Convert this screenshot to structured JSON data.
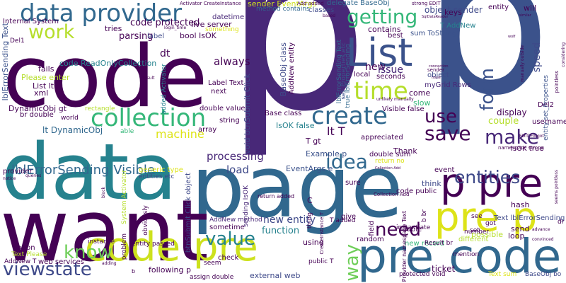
{
  "words": [
    {
      "text": "p",
      "color": "#482878"
    },
    {
      "text": "p",
      "color": "#3b528b"
    },
    {
      "text": "code",
      "color": "#440154"
    },
    {
      "text": "page",
      "color": "#31688e"
    },
    {
      "text": "data",
      "color": "#26828e"
    },
    {
      "text": "want",
      "color": "#440154"
    },
    {
      "text": "List",
      "color": "#3b528b"
    },
    {
      "text": "pre code",
      "color": "#31688e"
    },
    {
      "text": "code pre",
      "color": "#cde11d"
    },
    {
      "text": "p pre",
      "color": "#440154"
    },
    {
      "text": "pre p",
      "color": "#dde318"
    },
    {
      "text": "data provider",
      "color": "#31688e"
    },
    {
      "text": "collection",
      "color": "#35b779"
    },
    {
      "text": "create",
      "color": "#31688e"
    },
    {
      "text": "entities",
      "color": "#3e4989"
    },
    {
      "text": "work",
      "color": "#b5de2b"
    },
    {
      "text": "time",
      "color": "#b5de2b"
    },
    {
      "text": "getting",
      "color": "#35b779"
    },
    {
      "text": "make",
      "color": "#482878"
    },
    {
      "text": "save",
      "color": "#440154"
    },
    {
      "text": "idea",
      "color": "#31688e"
    },
    {
      "text": "use",
      "color": "#440154"
    },
    {
      "text": "form",
      "color": "#3b528b"
    },
    {
      "text": "need",
      "color": "#440154"
    },
    {
      "text": "know",
      "color": "#6ece58"
    },
    {
      "text": "value",
      "color": "#26828e"
    },
    {
      "text": "viewstate",
      "color": "#3e4989"
    },
    {
      "text": "way",
      "color": "#6ece58"
    },
    {
      "text": "lblErrorSending Visible",
      "color": "#31688e"
    },
    {
      "text": "lblErrorSending Text",
      "color": "#3b528b"
    },
    {
      "text": "machine",
      "color": "#dde318"
    },
    {
      "text": "processing",
      "color": "#482878"
    },
    {
      "text": "load",
      "color": "#3e4989"
    },
    {
      "text": "new entity",
      "color": "#3e4989"
    },
    {
      "text": "function",
      "color": "#26828e"
    },
    {
      "text": "lt T",
      "color": "#440154"
    },
    {
      "text": "lt DynamicObj",
      "color": "#31688e"
    },
    {
      "text": "DynamicObj gt",
      "color": "#440154"
    },
    {
      "text": "always",
      "color": "#440154"
    },
    {
      "text": "code ReadOnlyCollection",
      "color": "#26828e"
    },
    {
      "text": "code protected",
      "color": "#440154"
    },
    {
      "text": "parsing",
      "color": "#440154"
    },
    {
      "text": "tries",
      "color": "#440154"
    },
    {
      "text": "bool IsOK",
      "color": "#440154"
    },
    {
      "text": "label",
      "color": "#3e4989"
    },
    {
      "text": "live server",
      "color": "#440154"
    },
    {
      "text": "datetime",
      "color": "#482878"
    },
    {
      "text": "method contains",
      "color": "#31688e"
    },
    {
      "text": "sender EventArgs",
      "color": "#cde11d"
    },
    {
      "text": "classes",
      "color": "#3e4989"
    },
    {
      "text": "delegate BaseObj",
      "color": "#31688e"
    },
    {
      "text": "object sender",
      "color": "#3e4989"
    },
    {
      "text": "entity",
      "color": "#440154"
    },
    {
      "text": "keys",
      "color": "#440154"
    },
    {
      "text": "will",
      "color": "#440154"
    },
    {
      "text": "T AddNew",
      "color": "#26828e"
    },
    {
      "text": "sum ToString",
      "color": "#3b528b"
    },
    {
      "text": "contains",
      "color": "#440154"
    },
    {
      "text": "best",
      "color": "#440154"
    },
    {
      "text": "BaseObj class",
      "color": "#3e4989"
    },
    {
      "text": "AddNew entity",
      "color": "#440154"
    },
    {
      "text": "new",
      "color": "#440154"
    },
    {
      "text": "issue",
      "color": "#482878"
    },
    {
      "text": "local",
      "color": "#440154"
    },
    {
      "text": "seconds",
      "color": "#440154"
    },
    {
      "text": "myGrid Rows",
      "color": "#482878"
    },
    {
      "text": "come",
      "color": "#440154"
    },
    {
      "text": "slow",
      "color": "#35b779"
    },
    {
      "text": "Visible false",
      "color": "#440154"
    },
    {
      "text": "speed",
      "color": "#3e4989"
    },
    {
      "text": "display",
      "color": "#440154"
    },
    {
      "text": "Del2",
      "color": "#440154"
    },
    {
      "text": "couple",
      "color": "#b5de2b"
    },
    {
      "text": "username",
      "color": "#440154"
    },
    {
      "text": "IsOK true",
      "color": "#440154"
    },
    {
      "text": "event",
      "color": "#440154"
    },
    {
      "text": "think",
      "color": "#3e4989"
    },
    {
      "text": "Thank",
      "color": "#440154"
    },
    {
      "text": "appreciated",
      "color": "#440154"
    },
    {
      "text": "double sum",
      "color": "#440154"
    },
    {
      "text": "Example p",
      "color": "#3b528b"
    },
    {
      "text": "T gt",
      "color": "#440154"
    },
    {
      "text": "EventArgs e",
      "color": "#3b528b"
    },
    {
      "text": "IsOK false",
      "color": "#26828e"
    },
    {
      "text": "Base class",
      "color": "#440154"
    },
    {
      "text": "Internal System",
      "color": "#440154"
    },
    {
      "text": "Please enter",
      "color": "#b5de2b"
    },
    {
      "text": "fails",
      "color": "#440154"
    },
    {
      "text": "List lt",
      "color": "#440154"
    },
    {
      "text": "xml",
      "color": "#440154"
    },
    {
      "text": "br double",
      "color": "#440154"
    },
    {
      "text": "world",
      "color": "#440154"
    },
    {
      "text": "rectangle",
      "color": "#b5de2b"
    },
    {
      "text": "able",
      "color": "#35b779"
    },
    {
      "text": "generic type",
      "color": "#dde318"
    },
    {
      "text": "entities etc",
      "color": "#3e4989"
    },
    {
      "text": "Label Text",
      "color": "#440154"
    },
    {
      "text": "next",
      "color": "#440154"
    },
    {
      "text": "double value",
      "color": "#440154"
    },
    {
      "text": "array",
      "color": "#440154"
    },
    {
      "text": "string",
      "color": "#440154"
    },
    {
      "text": "dt",
      "color": "#440154"
    },
    {
      "text": "added Activator",
      "color": "#26828e"
    },
    {
      "text": "something",
      "color": "#dde318"
    },
    {
      "text": "void btnSubmit Click",
      "color": "#3e4989"
    },
    {
      "text": "btnSubmit Click object",
      "color": "#3e4989"
    },
    {
      "text": "sending IsOK",
      "color": "#482878"
    },
    {
      "text": "AddNew method",
      "color": "#482878"
    },
    {
      "text": "sometime",
      "color": "#440154"
    },
    {
      "text": "entity passed",
      "color": "#440154"
    },
    {
      "text": "obviously",
      "color": "#440154"
    },
    {
      "text": "following p",
      "color": "#440154"
    },
    {
      "text": "assign double",
      "color": "#440154"
    },
    {
      "text": "external web",
      "color": "#3e4989"
    },
    {
      "text": "check",
      "color": "#440154"
    },
    {
      "text": "seem",
      "color": "#440154"
    },
    {
      "text": "using",
      "color": "#440154"
    },
    {
      "text": "random",
      "color": "#440154"
    },
    {
      "text": "give",
      "color": "#440154"
    },
    {
      "text": "public T",
      "color": "#440154"
    },
    {
      "text": "protected void",
      "color": "#440154"
    },
    {
      "text": "web services",
      "color": "#440154"
    },
    {
      "text": "Text Please",
      "color": "#b5de2b"
    },
    {
      "text": "option",
      "color": "#440154"
    },
    {
      "text": "AddNew T",
      "color": "#440154"
    },
    {
      "text": "provider",
      "color": "#440154"
    },
    {
      "text": "problem",
      "color": "#440154"
    },
    {
      "text": "instance",
      "color": "#440154"
    },
    {
      "text": "return added",
      "color": "#440154"
    },
    {
      "text": "T added",
      "color": "#440154"
    },
    {
      "text": "new record",
      "color": "#35b779"
    },
    {
      "text": "lable",
      "color": "#440154"
    },
    {
      "text": "Result br",
      "color": "#440154"
    },
    {
      "text": "different",
      "color": "#b5de2b"
    },
    {
      "text": "mention",
      "color": "#440154"
    },
    {
      "text": "ticket",
      "color": "#440154"
    },
    {
      "text": "Text sum",
      "color": "#dde318"
    },
    {
      "text": "BaseObj bo",
      "color": "#3e4989"
    },
    {
      "text": "code public",
      "color": "#440154"
    },
    {
      "text": "instantiate",
      "color": "#440154"
    },
    {
      "text": "possible",
      "color": "#b5de2b"
    },
    {
      "text": "number",
      "color": "#440154"
    },
    {
      "text": "loop",
      "color": "#440154"
    },
    {
      "text": "send",
      "color": "#440154"
    },
    {
      "text": "hash",
      "color": "#440154"
    },
    {
      "text": "Text lblErrorSending",
      "color": "#3e4989"
    },
    {
      "text": "sure",
      "color": "#440154"
    },
    {
      "text": "field",
      "color": "#440154"
    },
    {
      "text": "Collection Add",
      "color": "#440154"
    },
    {
      "text": "return no",
      "color": "#dde318"
    },
    {
      "text": "set_Properties etc",
      "color": "#3b528b"
    },
    {
      "text": "entity set_Properties",
      "color": "#3b528b"
    },
    {
      "text": "true lblErrorSending",
      "color": "#31688e"
    },
    {
      "text": "lblErrorSending Text",
      "color": "#31688e"
    },
    {
      "text": "Provider namespace Text",
      "color": "#440154"
    },
    {
      "text": "System Activator",
      "color": "#b5de2b"
    },
    {
      "text": "Activator CreateInstance",
      "color": "#440154"
    },
    {
      "text": "Add added",
      "color": "#440154"
    },
    {
      "text": "strong EDIT",
      "color": "#440154"
    },
    {
      "text": "unlikely manually",
      "color": "#440154"
    },
    {
      "text": "object",
      "color": "#3e4989"
    },
    {
      "text": "Del1",
      "color": "#440154"
    },
    {
      "text": "sender",
      "color": "#440154"
    },
    {
      "text": "manually outside",
      "color": "#440154"
    },
    {
      "text": "CreateInstance T",
      "color": "#440154"
    },
    {
      "text": "thing",
      "color": "#440154"
    },
    {
      "text": "advance",
      "color": "#440154"
    },
    {
      "text": "convinced",
      "color": "#440154"
    },
    {
      "text": "pointless",
      "color": "#440154"
    },
    {
      "text": "seems pointless",
      "color": "#440154"
    },
    {
      "text": "namespace strong",
      "color": "#440154"
    },
    {
      "text": "EDIT Forgot",
      "color": "#440154"
    },
    {
      "text": "dr",
      "color": "#440154"
    },
    {
      "text": "set",
      "color": "#440154"
    },
    {
      "text": "b br",
      "color": "#440154"
    },
    {
      "text": "got",
      "color": "#440154"
    },
    {
      "text": "see",
      "color": "#440154"
    },
    {
      "text": "C",
      "color": "#440154"
    },
    {
      "text": "b",
      "color": "#440154"
    },
    {
      "text": "adding",
      "color": "#440154"
    },
    {
      "text": "Result",
      "color": "#440154"
    },
    {
      "text": "queries",
      "color": "#440154"
    },
    {
      "text": "block",
      "color": "#440154"
    },
    {
      "text": "notice",
      "color": "#440154"
    },
    {
      "text": "login_time",
      "color": "#440154"
    },
    {
      "text": "based",
      "color": "#440154"
    },
    {
      "text": "connection",
      "color": "#440154"
    },
    {
      "text": "similar",
      "color": "#440154"
    },
    {
      "text": "wolf",
      "color": "#440154"
    },
    {
      "text": "SqlDataReader",
      "color": "#440154"
    },
    {
      "text": "Collection Add",
      "color": "#440154"
    },
    {
      "text": "considering",
      "color": "#440154"
    },
    {
      "text": "issue",
      "color": "#440154"
    }
  ]
}
